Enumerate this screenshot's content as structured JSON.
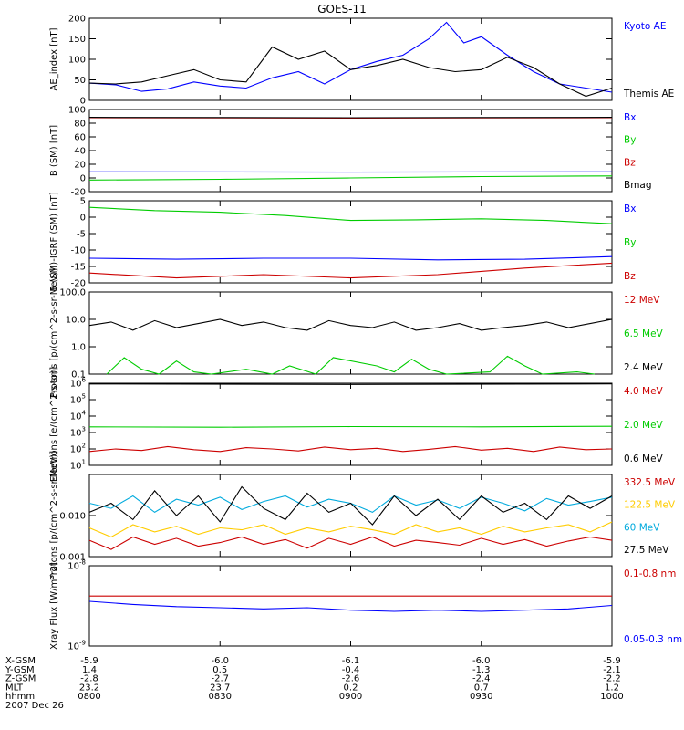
{
  "chart_data": [
    {
      "type": "line",
      "title": "GOES-11",
      "ylabel": "AE_index [nT]",
      "yscale": "linear",
      "ylim": [
        0,
        200
      ],
      "yticks": [
        "0",
        "50",
        "100",
        "150",
        "200"
      ],
      "series": [
        {
          "name": "Kyoto AE",
          "color": "#0000ff",
          "x": [
            0,
            6,
            12,
            18,
            24,
            30,
            36,
            42,
            48,
            54,
            60,
            66,
            72,
            78,
            82,
            86,
            90,
            96,
            102,
            108,
            114,
            120
          ],
          "values": [
            42,
            38,
            22,
            28,
            45,
            35,
            30,
            55,
            70,
            40,
            75,
            95,
            110,
            150,
            190,
            140,
            155,
            110,
            70,
            40,
            30,
            20
          ]
        },
        {
          "name": "Themis AE",
          "color": "#000000",
          "x": [
            0,
            6,
            12,
            18,
            24,
            30,
            36,
            42,
            48,
            54,
            60,
            66,
            72,
            78,
            84,
            90,
            96,
            102,
            108,
            114,
            120
          ],
          "values": [
            42,
            40,
            45,
            60,
            75,
            50,
            45,
            130,
            100,
            120,
            75,
            85,
            100,
            80,
            70,
            75,
            105,
            80,
            40,
            10,
            30
          ]
        }
      ]
    },
    {
      "type": "line",
      "ylabel": "B (SM) [nT]",
      "yscale": "linear",
      "ylim": [
        -20,
        100
      ],
      "yticks": [
        "-20",
        "0",
        "20",
        "40",
        "60",
        "80",
        "100"
      ],
      "series": [
        {
          "name": "Bx",
          "color": "#0000ff",
          "x": [
            0,
            60,
            120
          ],
          "values": [
            9,
            8.5,
            9
          ]
        },
        {
          "name": "By",
          "color": "#00cc00",
          "x": [
            0,
            30,
            60,
            90,
            120
          ],
          "values": [
            -3,
            -2,
            0,
            2,
            3
          ]
        },
        {
          "name": "Bz",
          "color": "#cc0000",
          "x": [
            0,
            60,
            120
          ],
          "values": [
            88,
            87.5,
            88
          ]
        },
        {
          "name": "Bmag",
          "color": "#000000",
          "x": [
            0,
            60,
            120
          ],
          "values": [
            88.5,
            88,
            88.5
          ]
        }
      ]
    },
    {
      "type": "line",
      "ylabel": "B (SM)-IGRF (SM) [nT]",
      "yscale": "linear",
      "ylim": [
        -20,
        5
      ],
      "yticks": [
        "-20",
        "-15",
        "-10",
        "-5",
        "0",
        "5"
      ],
      "series": [
        {
          "name": "Bx",
          "color": "#0000ff",
          "x": [
            0,
            20,
            40,
            60,
            80,
            100,
            120
          ],
          "values": [
            -12.5,
            -12.8,
            -12.5,
            -12.5,
            -13,
            -12.8,
            -12
          ]
        },
        {
          "name": "By",
          "color": "#00cc00",
          "x": [
            0,
            15,
            30,
            45,
            60,
            75,
            90,
            105,
            120
          ],
          "values": [
            3,
            2,
            1.5,
            0.5,
            -1,
            -0.8,
            -0.5,
            -1,
            -2
          ]
        },
        {
          "name": "Bz",
          "color": "#cc0000",
          "x": [
            0,
            20,
            40,
            60,
            80,
            100,
            120
          ],
          "values": [
            -17,
            -18.5,
            -17.5,
            -18.5,
            -17.5,
            -15.5,
            -14
          ]
        }
      ]
    },
    {
      "type": "line",
      "ylabel": "Protons [p/(cm^2-s-sr-MeV)]",
      "yscale": "log",
      "ylim": [
        0.1,
        100
      ],
      "yticks": [
        "0.1",
        "1.0",
        "10.0",
        "100.0"
      ],
      "series": [
        {
          "name": "12 MeV",
          "color": "#cc0000",
          "x": [
            0,
            120
          ],
          "values": [
            null,
            null
          ]
        },
        {
          "name": "6.5 MeV",
          "color": "#00cc00",
          "x": [
            4,
            8,
            12,
            16,
            20,
            24,
            28,
            36,
            42,
            46,
            52,
            56,
            66,
            70,
            74,
            78,
            82,
            92,
            96,
            100,
            104,
            112,
            116
          ],
          "values": [
            0.1,
            0.4,
            0.15,
            0.1,
            0.3,
            0.12,
            0.1,
            0.15,
            0.1,
            0.2,
            0.1,
            0.4,
            0.2,
            0.12,
            0.35,
            0.15,
            0.1,
            0.12,
            0.45,
            0.2,
            0.1,
            0.12,
            0.1
          ]
        },
        {
          "name": "2.4 MeV",
          "color": "#000000",
          "x": [
            0,
            5,
            10,
            15,
            20,
            25,
            30,
            35,
            40,
            45,
            50,
            55,
            60,
            65,
            70,
            75,
            80,
            85,
            90,
            95,
            100,
            105,
            110,
            115,
            120
          ],
          "values": [
            6,
            8,
            4,
            9,
            5,
            7,
            10,
            6,
            8,
            5,
            4,
            9,
            6,
            5,
            8,
            4,
            5,
            7,
            4,
            5,
            6,
            8,
            5,
            7,
            10
          ]
        }
      ]
    },
    {
      "type": "line",
      "ylabel": "Electrons [e/(cm^2-s-sr)]",
      "yscale": "log",
      "ylim": [
        10,
        1000000
      ],
      "yticks": [
        "10^1",
        "10^2",
        "10^3",
        "10^4",
        "10^5",
        "10^6"
      ],
      "series": [
        {
          "name": "4.0 MeV",
          "color": "#cc0000",
          "x": [
            0,
            6,
            12,
            18,
            24,
            30,
            36,
            42,
            48,
            54,
            60,
            66,
            72,
            78,
            84,
            90,
            96,
            102,
            108,
            114,
            120
          ],
          "values": [
            70,
            100,
            80,
            140,
            90,
            70,
            120,
            100,
            75,
            130,
            90,
            110,
            70,
            95,
            140,
            85,
            110,
            70,
            130,
            90,
            100
          ]
        },
        {
          "name": "2.0 MeV",
          "color": "#00cc00",
          "x": [
            0,
            30,
            60,
            90,
            120
          ],
          "values": [
            2200,
            2100,
            2300,
            2200,
            2400
          ]
        },
        {
          "name": "0.6 MeV",
          "color": "#000000",
          "x": [
            0,
            60,
            120
          ],
          "values": [
            900000,
            850000,
            920000
          ]
        }
      ]
    },
    {
      "type": "line",
      "ylabel": "Protons [p/(cm^2-s-sr-MeV)]",
      "yscale": "log",
      "ylim": [
        0.001,
        0.1
      ],
      "yticks": [
        "0.001",
        "0.010"
      ],
      "series": [
        {
          "name": "332.5 MeV",
          "color": "#cc0000",
          "x": [
            0,
            5,
            10,
            15,
            20,
            25,
            30,
            35,
            40,
            45,
            50,
            55,
            60,
            65,
            70,
            75,
            80,
            85,
            90,
            95,
            100,
            105,
            110,
            115,
            120
          ],
          "values": [
            0.0025,
            0.0015,
            0.003,
            0.002,
            0.0028,
            0.0018,
            0.0022,
            0.003,
            0.002,
            0.0026,
            0.0016,
            0.0028,
            0.002,
            0.003,
            0.0018,
            0.0025,
            0.0022,
            0.0019,
            0.0028,
            0.002,
            0.0026,
            0.0018,
            0.0024,
            0.003,
            0.0025
          ]
        },
        {
          "name": "122.5 MeV",
          "color": "#ffcc00",
          "x": [
            0,
            5,
            10,
            15,
            20,
            25,
            30,
            35,
            40,
            45,
            50,
            55,
            60,
            65,
            70,
            75,
            80,
            85,
            90,
            95,
            100,
            105,
            110,
            115,
            120
          ],
          "values": [
            0.005,
            0.003,
            0.006,
            0.004,
            0.0055,
            0.0035,
            0.005,
            0.0045,
            0.006,
            0.0035,
            0.005,
            0.004,
            0.0055,
            0.0045,
            0.0035,
            0.006,
            0.004,
            0.005,
            0.0035,
            0.0055,
            0.004,
            0.005,
            0.006,
            0.004,
            0.007
          ]
        },
        {
          "name": "60 MeV",
          "color": "#00aadd",
          "x": [
            0,
            5,
            10,
            15,
            20,
            25,
            30,
            35,
            40,
            45,
            50,
            55,
            60,
            65,
            70,
            75,
            80,
            85,
            90,
            95,
            100,
            105,
            110,
            115,
            120
          ],
          "values": [
            0.02,
            0.015,
            0.03,
            0.012,
            0.025,
            0.018,
            0.028,
            0.014,
            0.022,
            0.03,
            0.016,
            0.025,
            0.02,
            0.012,
            0.03,
            0.018,
            0.024,
            0.015,
            0.028,
            0.02,
            0.013,
            0.026,
            0.018,
            0.022,
            0.028
          ]
        },
        {
          "name": "27.5 MeV",
          "color": "#000000",
          "x": [
            0,
            5,
            10,
            15,
            20,
            25,
            30,
            35,
            40,
            45,
            50,
            55,
            60,
            65,
            70,
            75,
            80,
            85,
            90,
            95,
            100,
            105,
            110,
            115,
            120
          ],
          "values": [
            0.012,
            0.02,
            0.008,
            0.04,
            0.01,
            0.03,
            0.007,
            0.05,
            0.015,
            0.008,
            0.035,
            0.012,
            0.02,
            0.006,
            0.03,
            0.01,
            0.025,
            0.008,
            0.03,
            0.012,
            0.02,
            0.008,
            0.03,
            0.015,
            0.03
          ]
        }
      ]
    },
    {
      "type": "line",
      "ylabel": "Xray Flux [W/m^2]",
      "yscale": "log",
      "ylim": [
        1e-09,
        1e-08
      ],
      "yticks": [
        "10^-9",
        "10^-8"
      ],
      "series": [
        {
          "name": "0.1-0.8 nm",
          "color": "#cc0000",
          "x": [
            0,
            60,
            120
          ],
          "values": [
            4.2e-09,
            4.2e-09,
            4.2e-09
          ]
        },
        {
          "name": "0.05-0.3 nm",
          "color": "#0000ff",
          "x": [
            0,
            10,
            20,
            30,
            40,
            50,
            60,
            70,
            80,
            90,
            100,
            110,
            120
          ],
          "values": [
            3.6e-09,
            3.3e-09,
            3.1e-09,
            3e-09,
            2.9e-09,
            3e-09,
            2.8e-09,
            2.7e-09,
            2.8e-09,
            2.7e-09,
            2.8e-09,
            2.9e-09,
            3.2e-09
          ]
        }
      ]
    }
  ],
  "xaxis": {
    "ticks": [
      0,
      30,
      60,
      90,
      120
    ],
    "rows": [
      {
        "label": "X-GSM",
        "values": [
          "-5.9",
          "-6.0",
          "-6.1",
          "-6.0",
          "-5.9"
        ]
      },
      {
        "label": "Y-GSM",
        "values": [
          "1.4",
          "0.5",
          "-0.4",
          "-1.3",
          "-2.1"
        ]
      },
      {
        "label": "Z-GSM",
        "values": [
          "-2.8",
          "-2.7",
          "-2.6",
          "-2.4",
          "-2.2"
        ]
      },
      {
        "label": "MLT",
        "values": [
          "23.2",
          "23.7",
          "0.2",
          "0.7",
          "1.2"
        ]
      },
      {
        "label": "hhmm",
        "values": [
          "0800",
          "0830",
          "0900",
          "0930",
          "1000"
        ]
      }
    ],
    "date": "2007 Dec 26"
  }
}
